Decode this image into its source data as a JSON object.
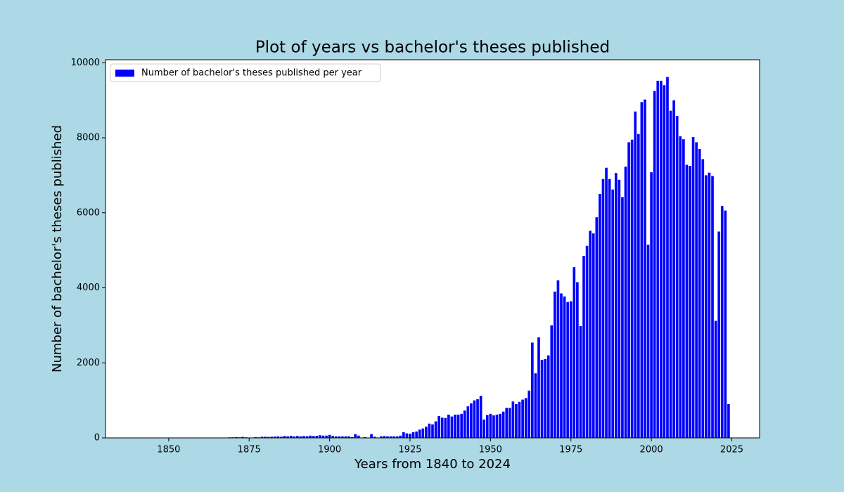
{
  "chart_data": {
    "type": "bar",
    "title": "Plot of years vs bachelor's theses published",
    "x_label": "Years from 1840 to 2024",
    "y_label": "Number of bachelor's theses published",
    "x": [
      1840,
      1841,
      1842,
      1843,
      1844,
      1845,
      1846,
      1847,
      1848,
      1849,
      1850,
      1851,
      1852,
      1853,
      1854,
      1855,
      1856,
      1857,
      1858,
      1859,
      1860,
      1861,
      1862,
      1863,
      1864,
      1865,
      1866,
      1867,
      1868,
      1869,
      1870,
      1871,
      1872,
      1873,
      1874,
      1875,
      1876,
      1877,
      1878,
      1879,
      1880,
      1881,
      1882,
      1883,
      1884,
      1885,
      1886,
      1887,
      1888,
      1889,
      1890,
      1891,
      1892,
      1893,
      1894,
      1895,
      1896,
      1897,
      1898,
      1899,
      1900,
      1901,
      1902,
      1903,
      1904,
      1905,
      1906,
      1907,
      1908,
      1909,
      1910,
      1911,
      1912,
      1913,
      1914,
      1915,
      1916,
      1917,
      1918,
      1919,
      1920,
      1921,
      1922,
      1923,
      1924,
      1925,
      1926,
      1927,
      1928,
      1929,
      1930,
      1931,
      1932,
      1933,
      1934,
      1935,
      1936,
      1937,
      1938,
      1939,
      1940,
      1941,
      1942,
      1943,
      1944,
      1945,
      1946,
      1947,
      1948,
      1949,
      1950,
      1951,
      1952,
      1953,
      1954,
      1955,
      1956,
      1957,
      1958,
      1959,
      1960,
      1961,
      1962,
      1963,
      1964,
      1965,
      1966,
      1967,
      1968,
      1969,
      1970,
      1971,
      1972,
      1973,
      1974,
      1975,
      1976,
      1977,
      1978,
      1979,
      1980,
      1981,
      1982,
      1983,
      1984,
      1985,
      1986,
      1987,
      1988,
      1989,
      1990,
      1991,
      1992,
      1993,
      1994,
      1995,
      1996,
      1997,
      1998,
      1999,
      2000,
      2001,
      2002,
      2003,
      2004,
      2005,
      2006,
      2007,
      2008,
      2009,
      2010,
      2011,
      2012,
      2013,
      2014,
      2015,
      2016,
      2017,
      2018,
      2019,
      2020,
      2021,
      2022,
      2023,
      2024
    ],
    "series": [
      {
        "name": "Number of bachelor's theses published per year",
        "color": "#0000ff",
        "values": [
          0,
          0,
          0,
          0,
          0,
          0,
          0,
          0,
          0,
          0,
          0,
          0,
          0,
          0,
          0,
          0,
          0,
          0,
          0,
          0,
          0,
          0,
          0,
          0,
          0,
          0,
          0,
          0,
          0,
          15,
          15,
          20,
          15,
          25,
          15,
          10,
          10,
          20,
          15,
          30,
          30,
          25,
          30,
          35,
          40,
          30,
          50,
          40,
          55,
          40,
          50,
          40,
          50,
          45,
          60,
          50,
          55,
          70,
          60,
          60,
          80,
          50,
          40,
          40,
          40,
          40,
          40,
          20,
          100,
          60,
          10,
          20,
          5,
          100,
          30,
          10,
          40,
          50,
          40,
          40,
          40,
          40,
          60,
          150,
          120,
          110,
          150,
          170,
          220,
          250,
          300,
          380,
          360,
          440,
          580,
          540,
          530,
          620,
          570,
          620,
          620,
          640,
          730,
          840,
          920,
          1000,
          1030,
          1120,
          490,
          610,
          640,
          600,
          620,
          640,
          700,
          800,
          800,
          970,
          900,
          960,
          1020,
          1060,
          1260,
          2540,
          1720,
          2680,
          2080,
          2100,
          2200,
          3000,
          3900,
          4200,
          3850,
          3770,
          3620,
          3640,
          4550,
          4150,
          2980,
          4850,
          5120,
          5520,
          5450,
          5880,
          6500,
          6900,
          7200,
          6900,
          6620,
          7060,
          6880,
          6420,
          7230,
          7880,
          7950,
          8700,
          8100,
          8950,
          9020,
          5150,
          7080,
          9250,
          9520,
          9520,
          9400,
          9620,
          8720,
          9000,
          8580,
          8040,
          7960,
          7280,
          7250,
          8020,
          7880,
          7700,
          7430,
          7000,
          7070,
          6980,
          3120,
          5500,
          6180,
          6060,
          900
        ]
      }
    ],
    "xlim": [
      1830.36,
      2033.64
    ],
    "ylim": [
      0,
      10080
    ],
    "xticks": [
      1850,
      1875,
      1900,
      1925,
      1950,
      1975,
      2000,
      2025
    ],
    "yticks": [
      0,
      2000,
      4000,
      6000,
      8000,
      10000
    ],
    "legend": "upper left",
    "grid": false
  }
}
